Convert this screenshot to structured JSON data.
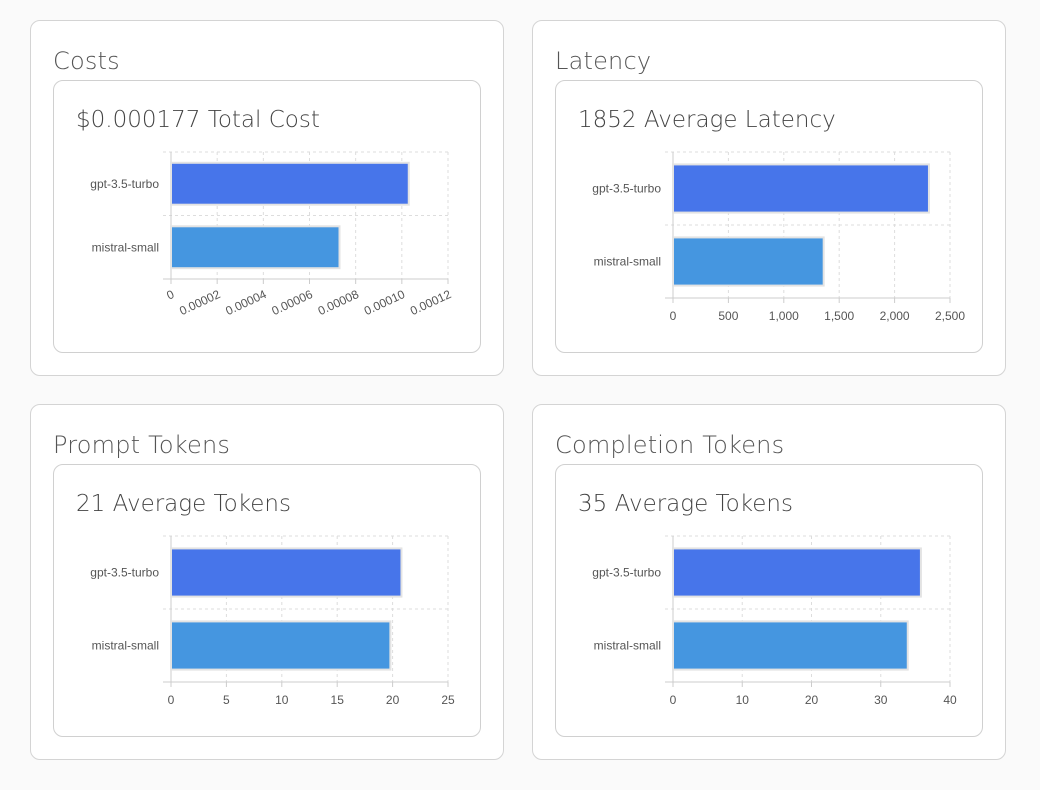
{
  "panels": [
    {
      "title": "Costs",
      "summary": "$0.000177 Total Cost"
    },
    {
      "title": "Latency",
      "summary": "1852 Average Latency"
    },
    {
      "title": "Prompt Tokens",
      "summary": "21 Average Tokens"
    },
    {
      "title": "Completion Tokens",
      "summary": "35 Average Tokens"
    }
  ],
  "colors": {
    "gpt": "#4775ea",
    "mistral": "#4596e0",
    "grid": "#dddddd"
  },
  "chart_data": [
    {
      "type": "bar",
      "orientation": "horizontal",
      "title": "$0.000177 Total Cost",
      "categories": [
        "gpt-3.5-turbo",
        "mistral-small"
      ],
      "values": [
        0.000103,
        7.3e-05
      ],
      "xlim": [
        0,
        0.00012
      ],
      "ticks": [
        "0",
        "0.00002",
        "0.00004",
        "0.00006",
        "0.00008",
        "0.00010",
        "0.00012"
      ],
      "rotated_ticks": true,
      "grid": true
    },
    {
      "type": "bar",
      "orientation": "horizontal",
      "title": "1852 Average Latency",
      "categories": [
        "gpt-3.5-turbo",
        "mistral-small"
      ],
      "values": [
        2310,
        1360
      ],
      "xlim": [
        0,
        2500
      ],
      "ticks": [
        "0",
        "500",
        "1,000",
        "1,500",
        "2,000",
        "2,500"
      ],
      "rotated_ticks": false,
      "grid": true
    },
    {
      "type": "bar",
      "orientation": "horizontal",
      "title": "21 Average Tokens",
      "categories": [
        "gpt-3.5-turbo",
        "mistral-small"
      ],
      "values": [
        20.8,
        19.8
      ],
      "xlim": [
        0,
        25
      ],
      "ticks": [
        "0",
        "5",
        "10",
        "15",
        "20",
        "25"
      ],
      "rotated_ticks": false,
      "grid": true
    },
    {
      "type": "bar",
      "orientation": "horizontal",
      "title": "35 Average Tokens",
      "categories": [
        "gpt-3.5-turbo",
        "mistral-small"
      ],
      "values": [
        35.8,
        33.9
      ],
      "xlim": [
        0,
        40
      ],
      "ticks": [
        "0",
        "10",
        "20",
        "30",
        "40"
      ],
      "rotated_ticks": false,
      "grid": true
    }
  ]
}
